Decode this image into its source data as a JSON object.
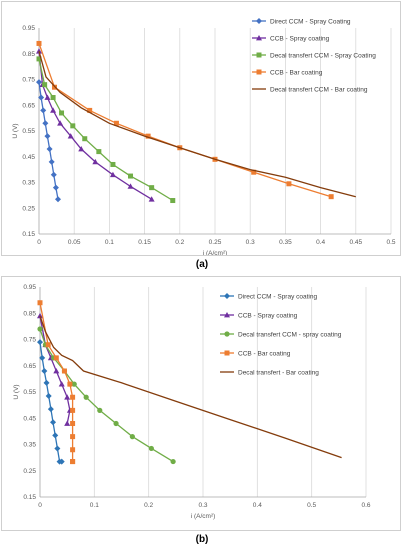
{
  "chart_data": [
    {
      "type": "line",
      "panel_label": "(a)",
      "xlabel": "i (A/cm²)",
      "ylabel": "U (V)",
      "xlim": [
        0,
        0.5
      ],
      "ylim": [
        0.15,
        0.95
      ],
      "xticks": [
        "0",
        "0.05",
        "0.1",
        "0.15",
        "0.2",
        "0.25",
        "0.3",
        "0.35",
        "0.4",
        "0.45",
        "0.5"
      ],
      "yticks": [
        "0.15",
        "0.25",
        "0.35",
        "0.45",
        "0.55",
        "0.65",
        "0.75",
        "0.85",
        "0.95"
      ],
      "grid": "vertical",
      "legend_position": "right",
      "series": [
        {
          "name": "Direct CCM - Spray Coating",
          "color": "#4472c4",
          "marker": "diamond",
          "x": [
            0,
            0.003,
            0.006,
            0.009,
            0.012,
            0.015,
            0.018,
            0.021,
            0.024,
            0.027
          ],
          "y": [
            0.74,
            0.68,
            0.63,
            0.58,
            0.53,
            0.48,
            0.43,
            0.38,
            0.33,
            0.285
          ]
        },
        {
          "name": "CCB - Spray coating",
          "color": "#7030a0",
          "marker": "triangle",
          "x": [
            0,
            0.005,
            0.012,
            0.02,
            0.03,
            0.045,
            0.06,
            0.08,
            0.105,
            0.13,
            0.16
          ],
          "y": [
            0.86,
            0.73,
            0.68,
            0.63,
            0.58,
            0.53,
            0.48,
            0.43,
            0.38,
            0.335,
            0.285
          ]
        },
        {
          "name": "Decal transfert CCM - Spray Coating",
          "color": "#70ad47",
          "marker": "square",
          "x": [
            0,
            0.008,
            0.02,
            0.032,
            0.048,
            0.065,
            0.085,
            0.105,
            0.13,
            0.16,
            0.19
          ],
          "y": [
            0.83,
            0.73,
            0.68,
            0.62,
            0.57,
            0.52,
            0.47,
            0.42,
            0.375,
            0.33,
            0.28
          ]
        },
        {
          "name": "CCB - Bar coating",
          "color": "#ed7d31",
          "marker": "square",
          "x": [
            0,
            0.022,
            0.072,
            0.11,
            0.155,
            0.2,
            0.25,
            0.305,
            0.355,
            0.415
          ],
          "y": [
            0.89,
            0.72,
            0.63,
            0.58,
            0.53,
            0.485,
            0.44,
            0.39,
            0.345,
            0.295
          ]
        },
        {
          "name": "Decal transfert CCM - Bar coating",
          "color": "#843c0c",
          "marker": "none",
          "x": [
            0,
            0.01,
            0.03,
            0.06,
            0.1,
            0.15,
            0.2,
            0.25,
            0.3,
            0.35,
            0.4,
            0.45
          ],
          "y": [
            0.86,
            0.76,
            0.7,
            0.64,
            0.58,
            0.53,
            0.485,
            0.44,
            0.4,
            0.37,
            0.33,
            0.295
          ]
        }
      ]
    },
    {
      "type": "line",
      "panel_label": "(b)",
      "xlabel": "i (A/cm²)",
      "ylabel": "U (V)",
      "xlim": [
        0,
        0.6
      ],
      "ylim": [
        0.15,
        0.95
      ],
      "xticks": [
        "0",
        "0.1",
        "0.2",
        "0.3",
        "0.4",
        "0.5",
        "0.6"
      ],
      "yticks": [
        "0.15",
        "0.25",
        "0.35",
        "0.45",
        "0.55",
        "0.65",
        "0.75",
        "0.85",
        "0.95"
      ],
      "grid": "vertical",
      "legend_position": "right",
      "series": [
        {
          "name": "Direct CCM - Spray coating",
          "color": "#2e75b6",
          "marker": "diamond",
          "x": [
            0,
            0.004,
            0.008,
            0.012,
            0.016,
            0.02,
            0.024,
            0.028,
            0.032,
            0.036,
            0.04
          ],
          "y": [
            0.74,
            0.68,
            0.63,
            0.585,
            0.535,
            0.485,
            0.435,
            0.385,
            0.335,
            0.285,
            0.285
          ]
        },
        {
          "name": "CCB - Spray coating",
          "color": "#7030a0",
          "marker": "triangle",
          "x": [
            0,
            0.01,
            0.02,
            0.03,
            0.04,
            0.05,
            0.055,
            0.05
          ],
          "y": [
            0.84,
            0.73,
            0.68,
            0.63,
            0.58,
            0.53,
            0.48,
            0.43
          ]
        },
        {
          "name": "Decal transfert CCM - spray coating",
          "color": "#70ad47",
          "marker": "circle",
          "x": [
            0,
            0.01,
            0.025,
            0.045,
            0.063,
            0.085,
            0.11,
            0.14,
            0.17,
            0.205,
            0.245
          ],
          "y": [
            0.79,
            0.73,
            0.68,
            0.63,
            0.58,
            0.53,
            0.48,
            0.43,
            0.38,
            0.335,
            0.285
          ]
        },
        {
          "name": "CCB - Bar coating",
          "color": "#ed7d31",
          "marker": "square",
          "x": [
            0,
            0.015,
            0.03,
            0.045,
            0.055,
            0.06,
            0.06,
            0.06,
            0.06,
            0.06,
            0.06,
            0.06
          ],
          "y": [
            0.89,
            0.73,
            0.68,
            0.63,
            0.58,
            0.53,
            0.48,
            0.43,
            0.38,
            0.33,
            0.285,
            0.285
          ]
        },
        {
          "name": "Decal transfert - Bar coating",
          "color": "#843c0c",
          "marker": "none",
          "x": [
            0,
            0.01,
            0.025,
            0.04,
            0.06,
            0.08,
            0.15,
            0.25,
            0.35,
            0.45,
            0.555
          ],
          "y": [
            0.84,
            0.78,
            0.72,
            0.69,
            0.67,
            0.63,
            0.585,
            0.515,
            0.445,
            0.375,
            0.3
          ]
        }
      ]
    }
  ]
}
